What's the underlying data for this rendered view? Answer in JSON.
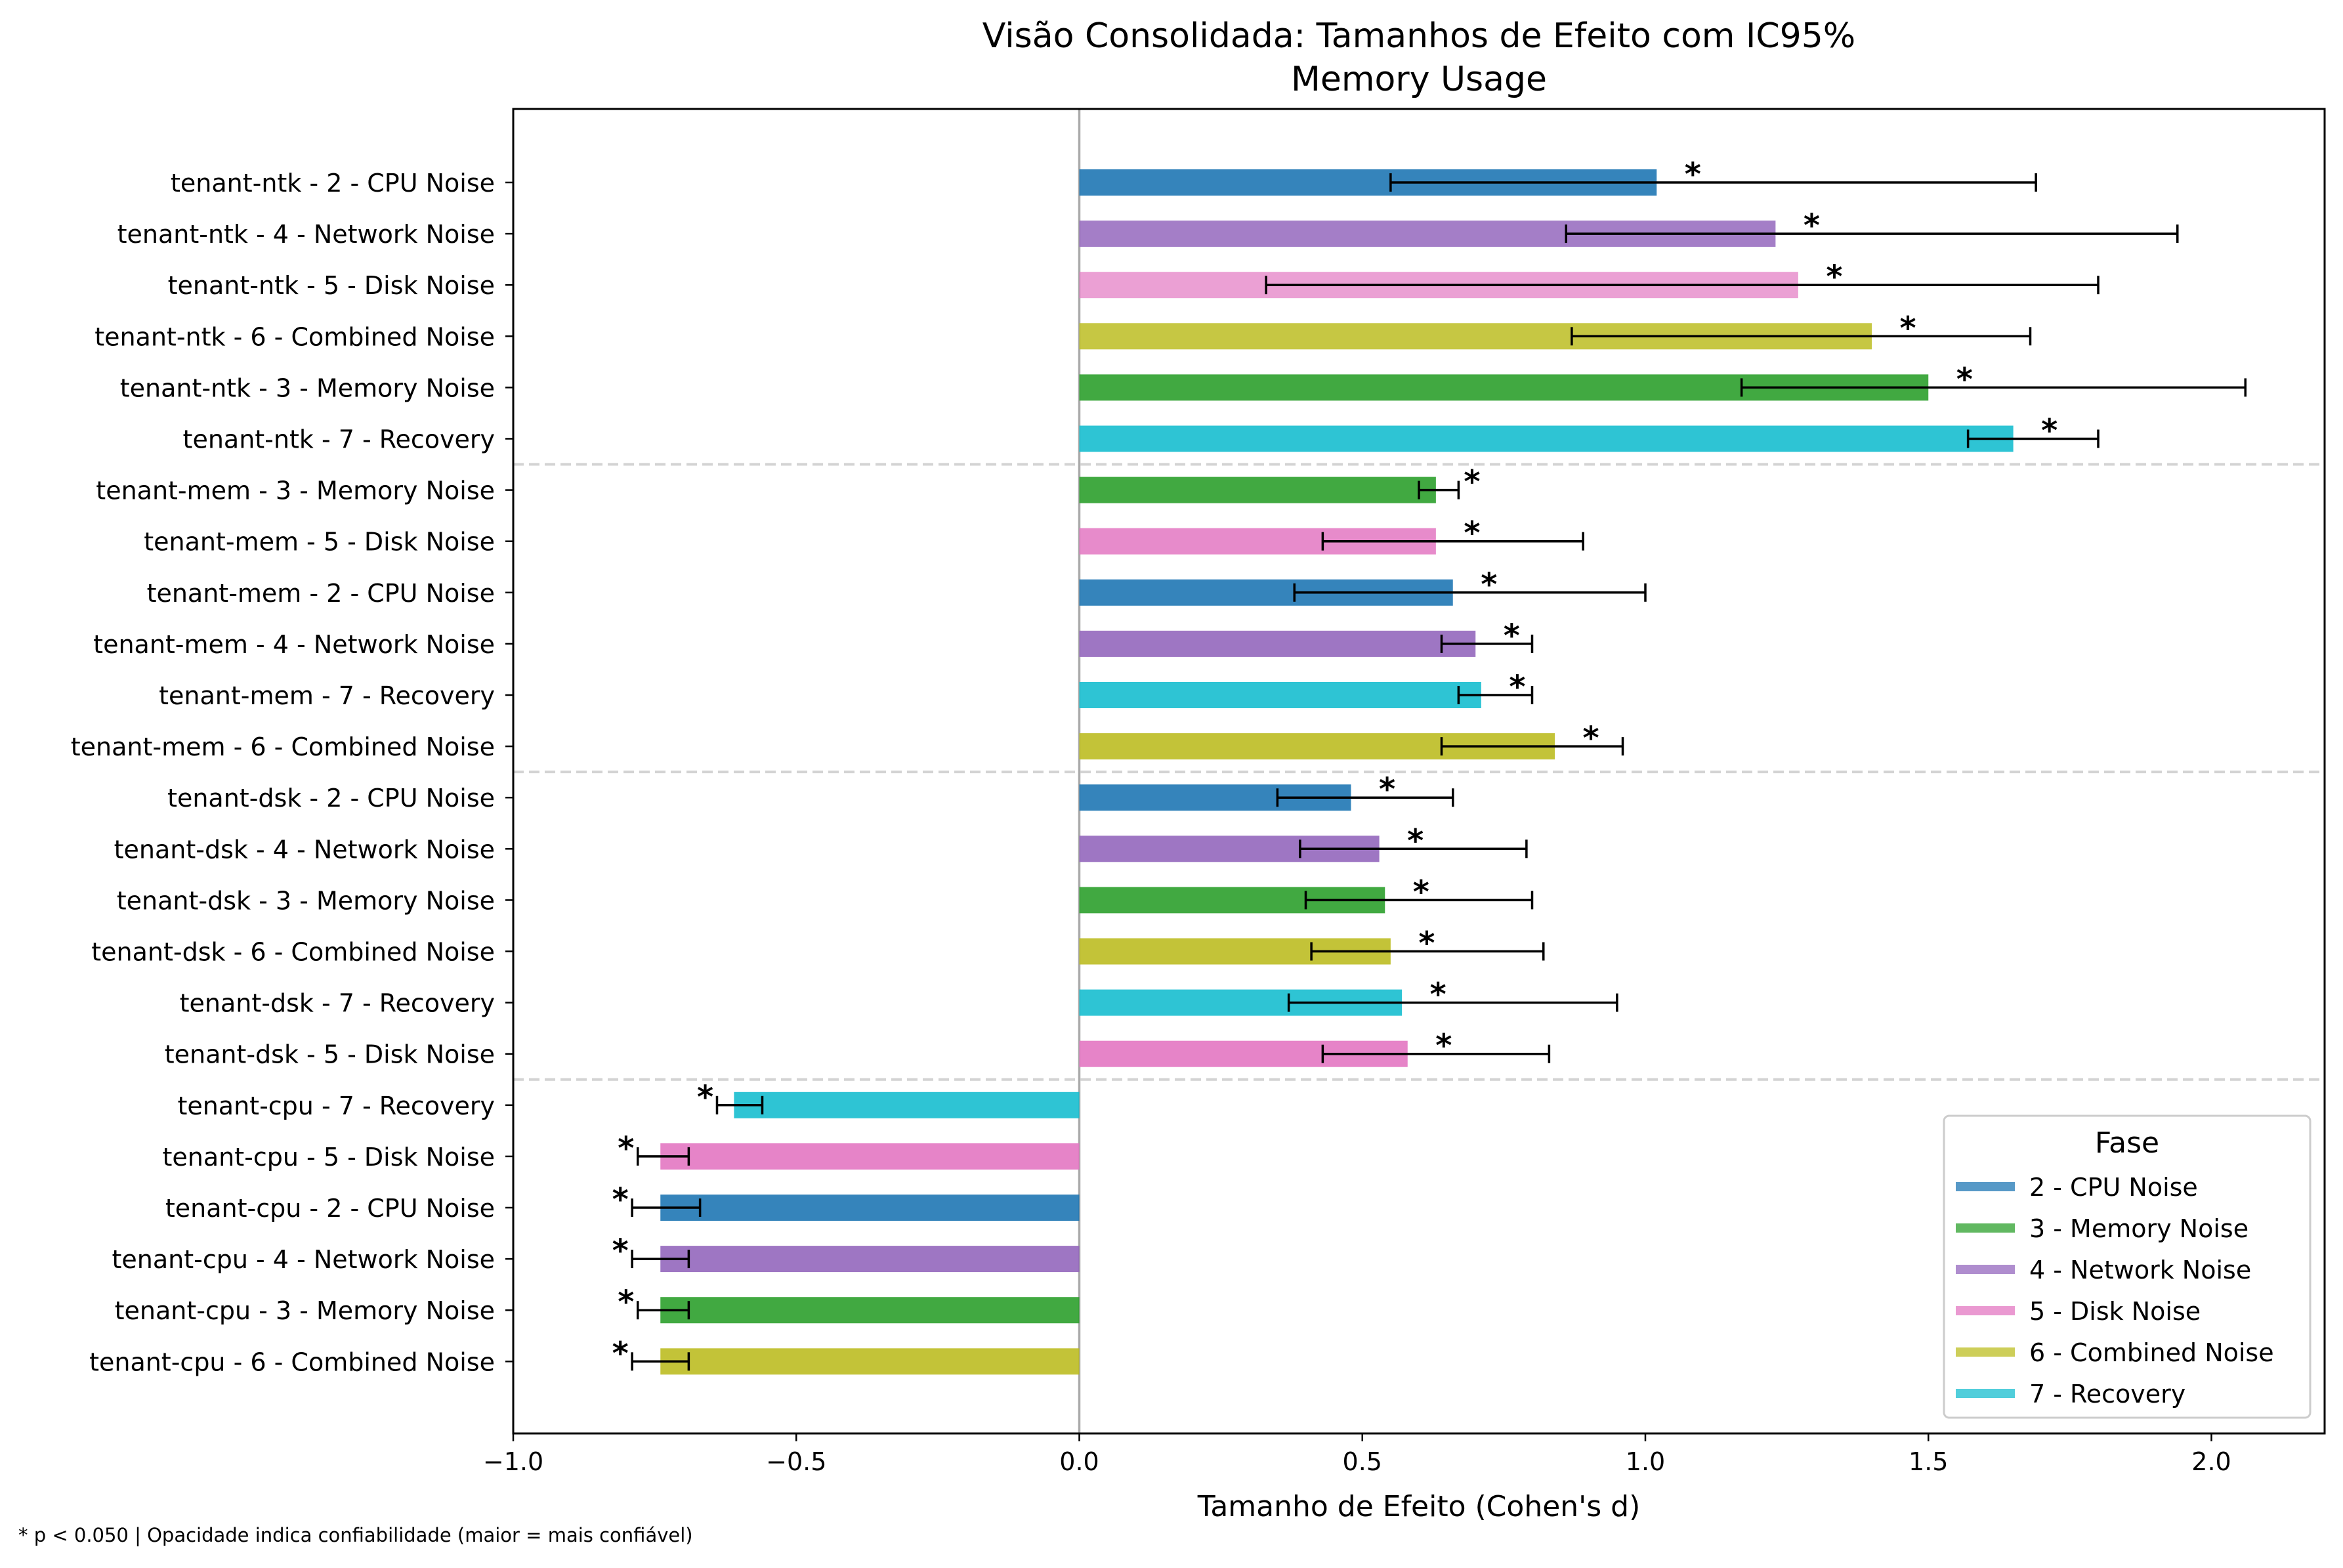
{
  "chart_data": {
    "type": "bar",
    "orientation": "horizontal",
    "title": "Visão Consolidada: Tamanhos de Efeito com IC95%",
    "subtitle": "Memory Usage",
    "xlabel": "Tamanho de Efeito (Cohen's d)",
    "ylabel": "",
    "xlim": [
      -1.0,
      2.2
    ],
    "xticks": [
      "−1.0",
      "−0.5",
      "0.0",
      "0.5",
      "1.0",
      "1.5",
      "2.0"
    ],
    "grid": false,
    "significance_marker": "*",
    "legend": {
      "title": "Fase",
      "placement": "lower-right",
      "entries": [
        {
          "label": "2 - CPU Noise",
          "color": "#1f77b4"
        },
        {
          "label": "3 - Memory Noise",
          "color": "#2ca02c"
        },
        {
          "label": "4 - Network Noise",
          "color": "#9467bd"
        },
        {
          "label": "5 - Disk Noise",
          "color": "#e377c2"
        },
        {
          "label": "6 - Combined Noise",
          "color": "#bcbd22"
        },
        {
          "label": "7 - Recovery",
          "color": "#17becf"
        }
      ]
    },
    "rows": [
      {
        "label": "tenant-ntk - 2 - CPU Noise",
        "phase": 0,
        "value": 1.02,
        "ci_low": 0.55,
        "ci_high": 1.69,
        "sig": true,
        "opacity": 0.9
      },
      {
        "label": "tenant-ntk - 4 - Network Noise",
        "phase": 2,
        "value": 1.23,
        "ci_low": 0.86,
        "ci_high": 1.94,
        "sig": true,
        "opacity": 0.85
      },
      {
        "label": "tenant-ntk - 5 - Disk Noise",
        "phase": 3,
        "value": 1.27,
        "ci_low": 0.33,
        "ci_high": 1.8,
        "sig": true,
        "opacity": 0.7
      },
      {
        "label": "tenant-ntk - 6 - Combined Noise",
        "phase": 4,
        "value": 1.4,
        "ci_low": 0.87,
        "ci_high": 1.68,
        "sig": true,
        "opacity": 0.85
      },
      {
        "label": "tenant-ntk - 3 - Memory Noise",
        "phase": 1,
        "value": 1.5,
        "ci_low": 1.17,
        "ci_high": 2.06,
        "sig": true,
        "opacity": 0.9
      },
      {
        "label": "tenant-ntk - 7 - Recovery",
        "phase": 5,
        "value": 1.65,
        "ci_low": 1.57,
        "ci_high": 1.8,
        "sig": true,
        "opacity": 0.9
      },
      {
        "label": "tenant-mem - 3 - Memory Noise",
        "phase": 1,
        "value": 0.63,
        "ci_low": 0.6,
        "ci_high": 0.67,
        "sig": true,
        "opacity": 0.9
      },
      {
        "label": "tenant-mem - 5 - Disk Noise",
        "phase": 3,
        "value": 0.63,
        "ci_low": 0.43,
        "ci_high": 0.89,
        "sig": true,
        "opacity": 0.85
      },
      {
        "label": "tenant-mem - 2 - CPU Noise",
        "phase": 0,
        "value": 0.66,
        "ci_low": 0.38,
        "ci_high": 1.0,
        "sig": true,
        "opacity": 0.9
      },
      {
        "label": "tenant-mem - 4 - Network Noise",
        "phase": 2,
        "value": 0.7,
        "ci_low": 0.64,
        "ci_high": 0.8,
        "sig": true,
        "opacity": 0.9
      },
      {
        "label": "tenant-mem - 7 - Recovery",
        "phase": 5,
        "value": 0.71,
        "ci_low": 0.67,
        "ci_high": 0.8,
        "sig": true,
        "opacity": 0.9
      },
      {
        "label": "tenant-mem - 6 - Combined Noise",
        "phase": 4,
        "value": 0.84,
        "ci_low": 0.64,
        "ci_high": 0.96,
        "sig": true,
        "opacity": 0.9
      },
      {
        "label": "tenant-dsk - 2 - CPU Noise",
        "phase": 0,
        "value": 0.48,
        "ci_low": 0.35,
        "ci_high": 0.66,
        "sig": true,
        "opacity": 0.9
      },
      {
        "label": "tenant-dsk - 4 - Network Noise",
        "phase": 2,
        "value": 0.53,
        "ci_low": 0.39,
        "ci_high": 0.79,
        "sig": true,
        "opacity": 0.9
      },
      {
        "label": "tenant-dsk - 3 - Memory Noise",
        "phase": 1,
        "value": 0.54,
        "ci_low": 0.4,
        "ci_high": 0.8,
        "sig": true,
        "opacity": 0.9
      },
      {
        "label": "tenant-dsk - 6 - Combined Noise",
        "phase": 4,
        "value": 0.55,
        "ci_low": 0.41,
        "ci_high": 0.82,
        "sig": true,
        "opacity": 0.9
      },
      {
        "label": "tenant-dsk - 7 - Recovery",
        "phase": 5,
        "value": 0.57,
        "ci_low": 0.37,
        "ci_high": 0.95,
        "sig": true,
        "opacity": 0.9
      },
      {
        "label": "tenant-dsk - 5 - Disk Noise",
        "phase": 3,
        "value": 0.58,
        "ci_low": 0.43,
        "ci_high": 0.83,
        "sig": true,
        "opacity": 0.9
      },
      {
        "label": "tenant-cpu - 7 - Recovery",
        "phase": 5,
        "value": -0.61,
        "ci_low": -0.64,
        "ci_high": -0.56,
        "sig": true,
        "opacity": 0.9
      },
      {
        "label": "tenant-cpu - 5 - Disk Noise",
        "phase": 3,
        "value": -0.74,
        "ci_low": -0.78,
        "ci_high": -0.69,
        "sig": true,
        "opacity": 0.9
      },
      {
        "label": "tenant-cpu - 2 - CPU Noise",
        "phase": 0,
        "value": -0.74,
        "ci_low": -0.79,
        "ci_high": -0.67,
        "sig": true,
        "opacity": 0.9
      },
      {
        "label": "tenant-cpu - 4 - Network Noise",
        "phase": 2,
        "value": -0.74,
        "ci_low": -0.79,
        "ci_high": -0.69,
        "sig": true,
        "opacity": 0.9
      },
      {
        "label": "tenant-cpu - 3 - Memory Noise",
        "phase": 1,
        "value": -0.74,
        "ci_low": -0.78,
        "ci_high": -0.69,
        "sig": true,
        "opacity": 0.9
      },
      {
        "label": "tenant-cpu - 6 - Combined Noise",
        "phase": 4,
        "value": -0.74,
        "ci_low": -0.79,
        "ci_high": -0.69,
        "sig": true,
        "opacity": 0.9
      }
    ],
    "group_separators_after_row": [
      5,
      11,
      17
    ],
    "footnote": "* p < 0.050  |  Opacidade indica confiabilidade (maior = mais confiável)"
  }
}
